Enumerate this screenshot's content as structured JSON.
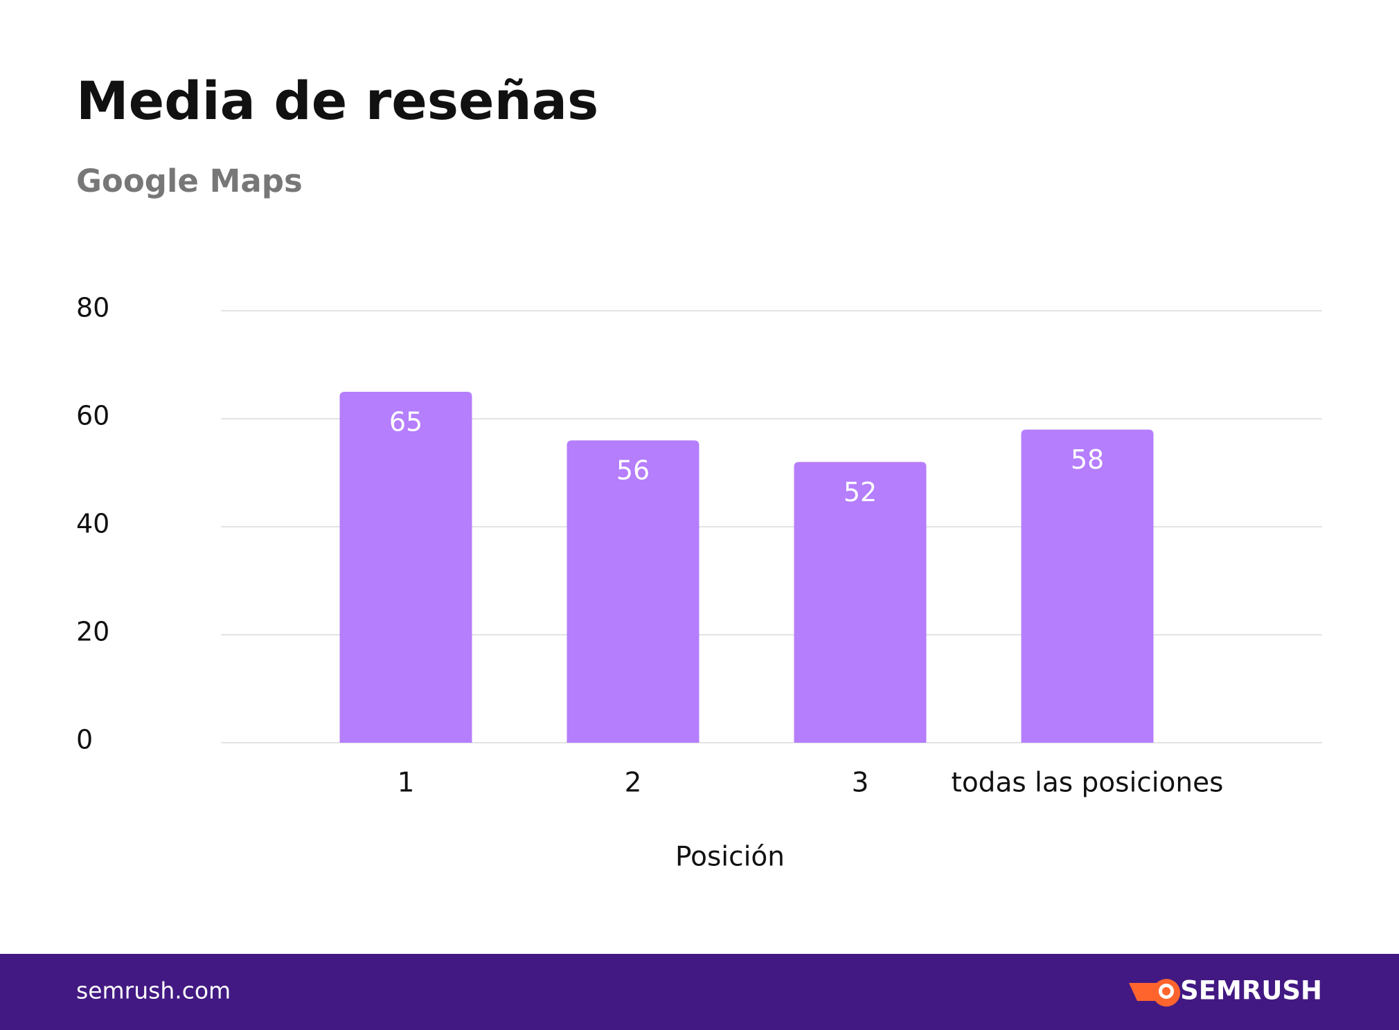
{
  "chart_data": {
    "type": "bar",
    "title": "Media de reseñas",
    "subtitle": "Google Maps",
    "x_label": "Posición",
    "categories": [
      "1",
      "2",
      "3",
      "todas las posiciones"
    ],
    "values": [
      65,
      56,
      52,
      58
    ],
    "color": "#b57efc",
    "ylim": [
      0,
      80
    ],
    "yticks": [
      0,
      20,
      40,
      60,
      80
    ],
    "grid": true
  },
  "footer": {
    "url": "semrush.com",
    "brand": "SEMRUSH"
  }
}
